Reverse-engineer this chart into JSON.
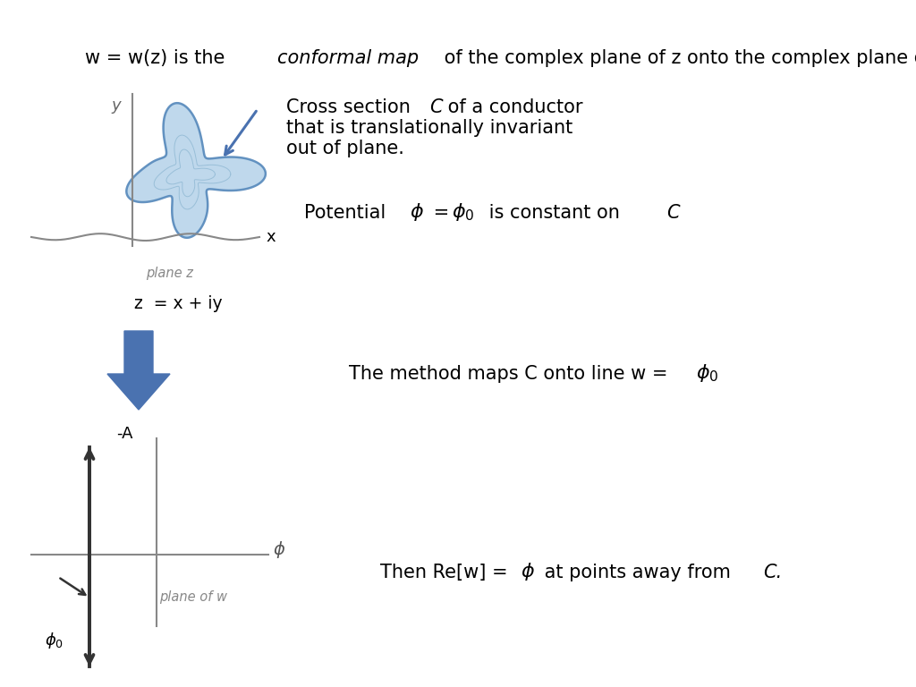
{
  "bg_color": "#ffffff",
  "arrow_color": "#4a72b0",
  "sketch_color": "#888888",
  "sketch_dark": "#555555",
  "blue_arrow": "#4a72b0",
  "w_axis_color": "#333333",
  "title_parts": [
    {
      "text": "w = w(z) is the ",
      "style": "normal"
    },
    {
      "text": "conformal map",
      "style": "italic"
    },
    {
      "text": " of the complex plane of z onto the complex plane of w",
      "style": "normal"
    }
  ],
  "cross1": "Cross section ",
  "cross_C": "C",
  "cross2": " of a conductor",
  "cross3": "that is translationally invariant",
  "cross4": "out of plane.",
  "pot1": "Potential ",
  "pot2": " = ",
  "pot3": " is constant on ",
  "pot_C": "C",
  "meth1": "The method maps C onto line w = ",
  "then1": "Then Re[w] = ",
  "then2": " at points away from ",
  "then_C": "C."
}
